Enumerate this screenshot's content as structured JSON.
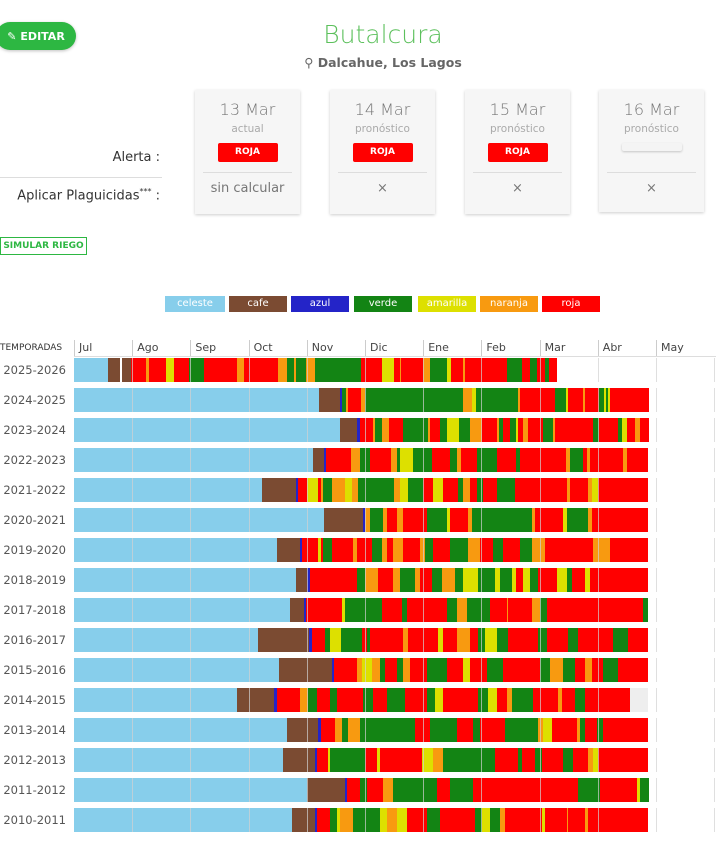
{
  "header": {
    "edit_label": "EDITAR",
    "title": "Butalcura",
    "location": "Dalcahue, Los Lagos"
  },
  "labels": {
    "alerta": "Alerta :",
    "plaguicidas": "Aplicar Plaguicidas",
    "plaguicidas_sup": "***",
    "plaguicidas_colon": " :"
  },
  "days": [
    {
      "date": "13 Mar",
      "sub": "actual",
      "alert": "ROJA",
      "apply": "sin calcular"
    },
    {
      "date": "14 Mar",
      "sub": "pronóstico",
      "alert": "ROJA",
      "apply": "×"
    },
    {
      "date": "15 Mar",
      "sub": "pronóstico",
      "alert": "ROJA",
      "apply": "×"
    },
    {
      "date": "16 Mar",
      "sub": "pronóstico",
      "alert": "",
      "apply": "×"
    }
  ],
  "simulate_label": "SIMULAR RIEGO",
  "chart_data": {
    "type": "timeline",
    "row_header": "TEMPORADAS",
    "months": [
      "Jul",
      "Ago",
      "Sep",
      "Oct",
      "Nov",
      "Dic",
      "Ene",
      "Feb",
      "Mar",
      "Abr",
      "May"
    ],
    "x_unit": "days since Jul 1",
    "legend": [
      {
        "code": "c",
        "label": "celeste",
        "color": "#87CEEB"
      },
      {
        "code": "f",
        "label": "cafe",
        "color": "#7B4B32"
      },
      {
        "code": "a",
        "label": "azul",
        "color": "#2424C8"
      },
      {
        "code": "v",
        "label": "verde",
        "color": "#138414"
      },
      {
        "code": "m",
        "label": "amarilla",
        "color": "#DDE000"
      },
      {
        "code": "n",
        "label": "naranja",
        "color": "#F89A10"
      },
      {
        "code": "r",
        "label": "roja",
        "color": "#FF0000"
      }
    ],
    "extra_colors": {
      "w": "#FFFFFF",
      "g": "#EEEEEE"
    },
    "rows": [
      {
        "season": "2025-2026",
        "segments": "c18 f24 w25 f30 r37.6 n39.4 r48 m52 r60 v68 r85 n89 r106.6 n111 v115 n116 v121 n126 v150 r161 m167 r170 n171 r182 n186 v195 m197 r203 n204 r226 v234 r238 v242 r246 v248 r252"
      },
      {
        "season": "2024-2025",
        "segments": "c128 f139 a140 v142 n143 r150 n152 v203 n208 m210 v232 n233 r251 v257 m258 r266 n267 r274 v277 m278 v279 m280 r300"
      },
      {
        "season": "2023-2024",
        "segments": "c139 f148 a149.4 r156 n157 v161 n164.5 r172 v185 n186 r191 v194.6 m201 v207 n213 r221 n222 v224 r227.6 v231 m232 r234.6 n237 r245 v250 n251 r271 v274 r284 v286 m288.6 r293 n295.5 r300"
      },
      {
        "season": "2022-2023",
        "segments": "c124.7 f130.6 a131.6 r144.5 n149.4 v154.6 r165.5 n168.5 v170 m176.9 v186.8 r196.3 v199.8 n201.9 r210.3 v220.7 r231 v232.8 r257 n259 v266 r267.8 n269.5 r286.8 n288.6 r299.6"
      },
      {
        "season": "2021-2022",
        "segments": "c98.2 f115.8 a116.8 r121.5 m127.6 r129 n130.2 v134.6 n141.5 m145 n148.5 v167 n170.2 m174.6 v182.5 r187.6 m192.9 r200.7 v203.3 n206.8 r210.3 v213.7 r220.7 v230.3 r257.2 n259 r268.6 n270.3 m273.8 r299.6"
      },
      {
        "season": "2020-2021",
        "segments": "c130.6 f151.1 a152 n154.6 v161.5 n163.3 r168.5 n172 r174.6 r184.2 v194.6 m196.3 r205.9 n207.6 v239 n240.7 r255.5 m257.2 v268.6 n270.3 r299.6"
      },
      {
        "season": "2019-2020",
        "segments": "c105.9 f118 a118.9 r127.5 m129 r130.2 v134.6 r145.9 n147.6 r155.4 v160.7 n163.3 r166.8 n172 r180.7 n183.3 v187.6 r196.3 v205.9 n212 r219 v224.2 r232.9 v239 n245.9 r271.2 n279.9 r299.6"
      },
      {
        "season": "2018-2019",
        "segments": "c116 f121.9 a123.3 r147.6 v152 n159 r166.8 n170.2 v178 n180.7 r186.8 v192 n199 v203.3 m211 v219.8 m222.4 v228.5 m231 r234.6 m238.1 v242.5 r252 m257.2 v259.8 r266.8 m269.4 r299.6"
      },
      {
        "season": "2017-2018",
        "segments": "c112.8 f120.1 a121.2 r139.8 m141.5 v160.7 r171.1 v173.7 r194.6 v199.8 n205.4 v217.2 r225.9 n226.8 r239 n243.3 v246.8 r297.3 v299.6"
      },
      {
        "season": "2016-2017",
        "segments": "c96.3 f122.9 a124.1 r131.1 v133.7 m139.4 v150.2 r152.8 v154.6 r172 n174.6 r190.2 m192.9 r199.8 n206.8 r211.1 v214.6 m220.7 v226.8 r242.5 v246.8 r258.1 v263.3 r281.6 v289.4 r299.6"
      },
      {
        "season": "2015-2016",
        "segments": "c107.3 f134.6 a135.8 r147.6 n150.2 m155.4 n159.8 v162.4 r168.5 v172 n175.5 r184.2 v194.6 r203.3 m206.8 r215.5 v224.2 r243.3 v248.5 n255.5 v261.6 r266.8 n270.3 r276.4 v284.2 r299.6"
      },
      {
        "season": "2014-2015",
        "segments": "c85 f104.6 a105.9 r118 n122.4 v126.8 r133.7 v137.2 r151.1 v156.3 r163.3 v172.8 r184.2 v188.5 m192.9 r211.1 v216.4 m220.7 r225.9 n228.5 v239.8 r252.9 n254.6 r261.6 v266.8 r290.3 g299.6"
      },
      {
        "season": "2013-2014",
        "segments": "c111.1 f127.6 a128.8 r136.3 n139.8 v143.2 n149.4 v178 r185.9 v199.8 r208.5 v212 r225 v242.5 n245 m249.4 r262.5 n264.2 v266.8 r272.9 v276.4 r299.6"
      },
      {
        "season": "2012-2013",
        "segments": "c109 f125.9 a127.1 r132.8 m133.7 v152 r158.1 m159.8 r181.5 m187.6 n192.9 v219.8 r232 v233.7 r240.7 v244.2 r255.5 v260.7 r268.6 n271.2 m273.8 r299.6"
      },
      {
        "season": "2011-2012",
        "segments": "c121.5 f141.5 a142.7 r149.4 v152.8 r161.5 n166.8 v189.4 r196.3 v208.5 r263.3 v274.6 r293.8 m295.5 v300"
      },
      {
        "season": "2010-2011",
        "segments": "c113.7 f125.9 a127.1 r133.7 v137.2 m138.9 n145.9 v159.8 m163.3 n168.5 m173.7 r184.2 v191.1 r209.4 v212.9 m217.2 v222.4 n225 r244.2 m245.9 r257.2 n258.1 r266.8 n268.6 r299.6"
      }
    ]
  }
}
